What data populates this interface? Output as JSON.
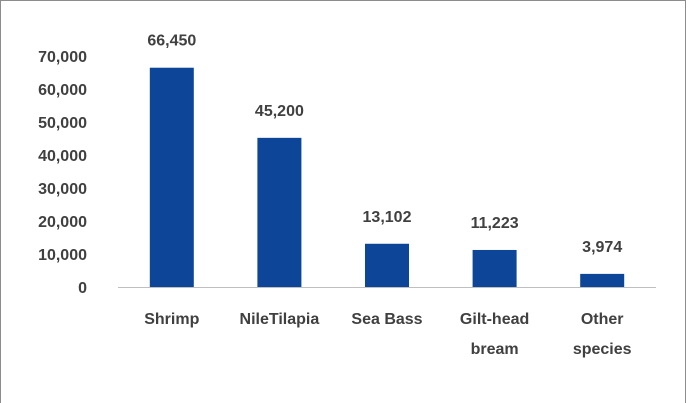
{
  "chart_data": {
    "type": "bar",
    "categories": [
      [
        "Shrimp"
      ],
      [
        "NileTilapia"
      ],
      [
        "Sea Bass"
      ],
      [
        "Gilt-head",
        "bream"
      ],
      [
        "Other",
        "species"
      ]
    ],
    "values": [
      66450,
      45200,
      13102,
      11223,
      3974
    ],
    "data_labels": [
      "66,450",
      "45,200",
      "13,102",
      "11,223",
      "3,974"
    ],
    "y_ticks": [
      0,
      10000,
      20000,
      30000,
      40000,
      50000,
      60000,
      70000
    ],
    "y_tick_labels": [
      "0",
      "10,000",
      "20,000",
      "30,000",
      "40,000",
      "50,000",
      "60,000",
      "70,000"
    ],
    "ylim": [
      0,
      70000
    ],
    "grid": false,
    "title": "",
    "xlabel": "",
    "ylabel": "",
    "colors": {
      "bar": "#0d4598",
      "text": "#404040",
      "axis": "#bfbfbf",
      "frame": "#8c8c8c"
    }
  }
}
